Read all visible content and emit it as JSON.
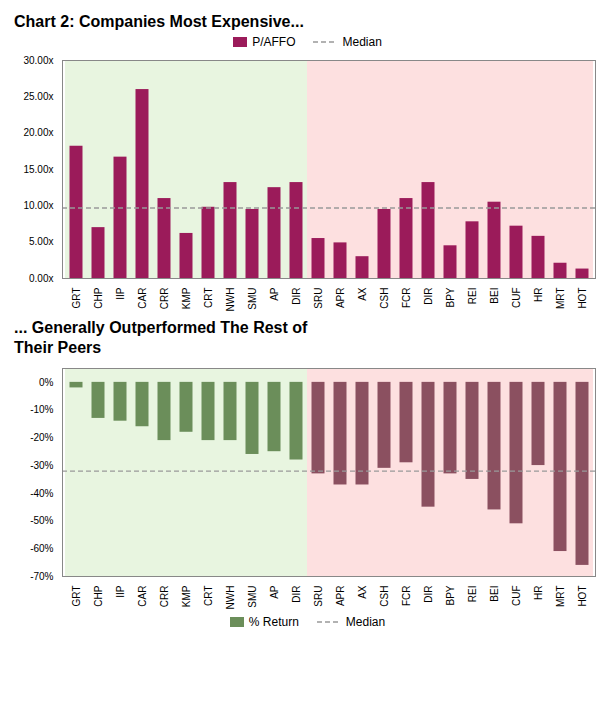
{
  "chart_data": [
    {
      "type": "bar",
      "title": "Chart 2: Companies Most Expensive...",
      "categories": [
        "GRT",
        "CHP",
        "IIP",
        "CAR",
        "CRR",
        "KMP",
        "CRT",
        "NWH",
        "SMU",
        "AP",
        "DIR",
        "SRU",
        "APR",
        "AX",
        "CSH",
        "FCR",
        "DIR",
        "BPY",
        "REI",
        "BEI",
        "CUF",
        "HR",
        "MRT",
        "HOT"
      ],
      "series": [
        {
          "name": "P/AFFO",
          "color": "#9b1b5a",
          "values": [
            18.2,
            7.0,
            16.7,
            26.0,
            11.0,
            6.2,
            9.8,
            13.2,
            9.5,
            12.5,
            13.2,
            5.5,
            4.9,
            3.0,
            9.5,
            11.0,
            13.2,
            4.5,
            7.8,
            10.5,
            7.2,
            5.8,
            2.1,
            1.3
          ]
        }
      ],
      "median": {
        "name": "Median",
        "value": 9.7,
        "color": "#999999",
        "line_style": "dashed"
      },
      "panels": [
        {
          "count": 11,
          "color": "#e8f5e0"
        },
        {
          "count": 13,
          "color": "#fde0e0"
        }
      ],
      "ylim": [
        0,
        30
      ],
      "yticks": [
        {
          "value": 0,
          "label": "0.00x"
        },
        {
          "value": 5,
          "label": "5.00x"
        },
        {
          "value": 10,
          "label": "10.00x"
        },
        {
          "value": 15,
          "label": "15.00x"
        },
        {
          "value": 20,
          "label": "20.00x"
        },
        {
          "value": 25,
          "label": "25.00x"
        },
        {
          "value": 30,
          "label": "30.00x"
        }
      ],
      "grid": false,
      "legend": "top"
    },
    {
      "type": "bar",
      "title": "... Generally Outperformed The Rest of\nTheir Peers",
      "categories": [
        "GRT",
        "CHP",
        "IIP",
        "CAR",
        "CRR",
        "KMP",
        "CRT",
        "NWH",
        "SMU",
        "AP",
        "DIR",
        "SRU",
        "APR",
        "AX",
        "CSH",
        "FCR",
        "DIR",
        "BPY",
        "REI",
        "BEI",
        "CUF",
        "HR",
        "MRT",
        "HOT"
      ],
      "series": [
        {
          "name": "% Return",
          "color": "#6b8e5a",
          "colors": [
            "#6b8e5a",
            "#6b8e5a",
            "#6b8e5a",
            "#6b8e5a",
            "#6b8e5a",
            "#6b8e5a",
            "#6b8e5a",
            "#6b8e5a",
            "#6b8e5a",
            "#6b8e5a",
            "#6b8e5a",
            "#8b5060",
            "#8b5060",
            "#8b5060",
            "#8b5060",
            "#8b5060",
            "#8b5060",
            "#8b5060",
            "#8b5060",
            "#8b5060",
            "#8b5060",
            "#8b5060",
            "#8b5060",
            "#8b5060"
          ],
          "values": [
            -2,
            -13,
            -14,
            -16,
            -21,
            -18,
            -21,
            -21,
            -26,
            -25,
            -28,
            -33,
            -37,
            -37,
            -31,
            -29,
            -45,
            -33,
            -35,
            -46,
            -51,
            -30,
            -61,
            -66
          ]
        }
      ],
      "median": {
        "name": "Median",
        "value": -32,
        "color": "#999999",
        "line_style": "dashed"
      },
      "panels": [
        {
          "count": 11,
          "color": "#e8f5e0"
        },
        {
          "count": 13,
          "color": "#fde0e0"
        }
      ],
      "ylim": [
        -70,
        5
      ],
      "yticks": [
        {
          "value": 0,
          "label": "0%"
        },
        {
          "value": -10,
          "label": "-10%"
        },
        {
          "value": -20,
          "label": "-20%"
        },
        {
          "value": -30,
          "label": "-30%"
        },
        {
          "value": -40,
          "label": "-40%"
        },
        {
          "value": -50,
          "label": "-50%"
        },
        {
          "value": -60,
          "label": "-60%"
        },
        {
          "value": -70,
          "label": "-70%"
        }
      ],
      "grid": false,
      "legend": "bottom"
    }
  ]
}
